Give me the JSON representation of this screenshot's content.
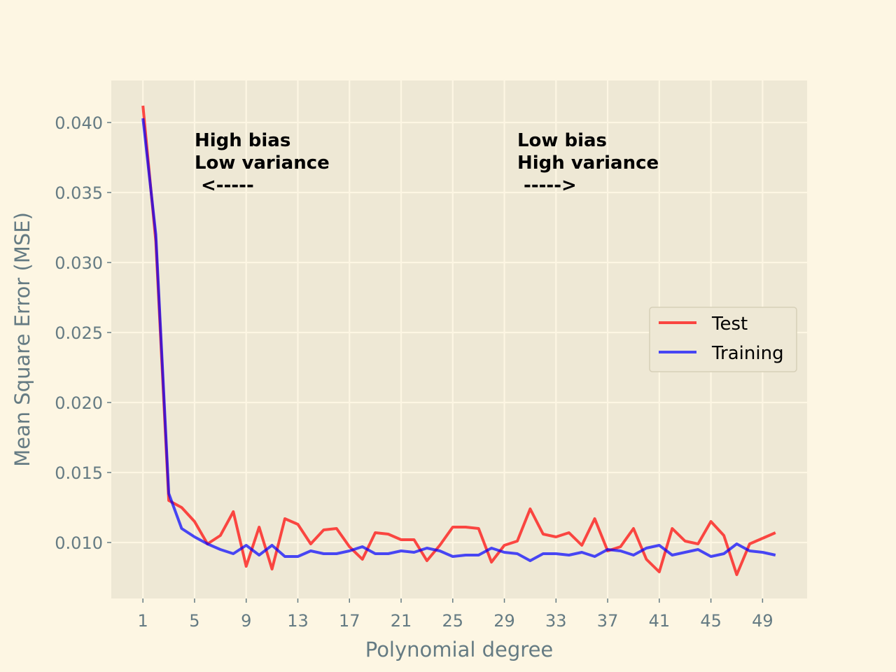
{
  "chart_data": {
    "type": "line",
    "title": "",
    "xlabel": "Polynomial degree",
    "ylabel": "Mean Square Error (MSE)",
    "xlim": [
      -1.45,
      52.45
    ],
    "ylim": [
      0.006,
      0.043
    ],
    "x_ticks": [
      1,
      5,
      9,
      13,
      17,
      21,
      25,
      29,
      33,
      37,
      41,
      45,
      49
    ],
    "y_ticks": [
      0.01,
      0.015,
      0.02,
      0.025,
      0.03,
      0.035,
      0.04
    ],
    "y_tick_labels": [
      "0.010",
      "0.015",
      "0.020",
      "0.025",
      "0.030",
      "0.035",
      "0.040"
    ],
    "grid": true,
    "legend_position": "center-right",
    "x": [
      1,
      2,
      3,
      4,
      5,
      6,
      7,
      8,
      9,
      10,
      11,
      12,
      13,
      14,
      15,
      16,
      17,
      18,
      19,
      20,
      21,
      22,
      23,
      24,
      25,
      26,
      27,
      28,
      29,
      30,
      31,
      32,
      33,
      34,
      35,
      36,
      37,
      38,
      39,
      40,
      41,
      42,
      43,
      44,
      45,
      46,
      47,
      48,
      49,
      50
    ],
    "series": [
      {
        "name": "Test",
        "color": "#ff0000",
        "values": [
          0.0412,
          0.0315,
          0.013,
          0.0125,
          0.0115,
          0.0099,
          0.0105,
          0.0122,
          0.0083,
          0.0111,
          0.0081,
          0.0117,
          0.0113,
          0.0099,
          0.0109,
          0.011,
          0.0097,
          0.0088,
          0.0107,
          0.0106,
          0.0102,
          0.0102,
          0.0087,
          0.0098,
          0.0111,
          0.0111,
          0.011,
          0.0086,
          0.0098,
          0.0101,
          0.0124,
          0.0106,
          0.0104,
          0.0107,
          0.0098,
          0.0117,
          0.0094,
          0.0097,
          0.011,
          0.0088,
          0.0079,
          0.011,
          0.0101,
          0.0099,
          0.0115,
          0.0105,
          0.0077,
          0.0099,
          0.0103,
          0.0107
        ]
      },
      {
        "name": "Training",
        "color": "#0000ff",
        "values": [
          0.0403,
          0.032,
          0.0135,
          0.011,
          0.0104,
          0.0099,
          0.0095,
          0.0092,
          0.0098,
          0.0091,
          0.0098,
          0.009,
          0.009,
          0.0094,
          0.0092,
          0.0092,
          0.0094,
          0.0097,
          0.0092,
          0.0092,
          0.0094,
          0.0093,
          0.0096,
          0.0094,
          0.009,
          0.0091,
          0.0091,
          0.0096,
          0.0093,
          0.0092,
          0.0087,
          0.0092,
          0.0092,
          0.0091,
          0.0093,
          0.009,
          0.0095,
          0.0094,
          0.0091,
          0.0096,
          0.0098,
          0.0091,
          0.0093,
          0.0095,
          0.009,
          0.0092,
          0.0099,
          0.0094,
          0.0093,
          0.0091
        ]
      }
    ],
    "annotations": [
      {
        "lines": [
          "High bias",
          "Low variance",
          " <-----"
        ],
        "x": 5,
        "y": 0.0383
      },
      {
        "lines": [
          "Low bias",
          "High variance",
          " ----->"
        ],
        "x": 30,
        "y": 0.0383
      }
    ]
  },
  "colors": {
    "figure_background": "#fdf6e3",
    "plot_background": "#eee8d5",
    "grid": "#fdf6e3",
    "axis_text": "#657b83"
  }
}
